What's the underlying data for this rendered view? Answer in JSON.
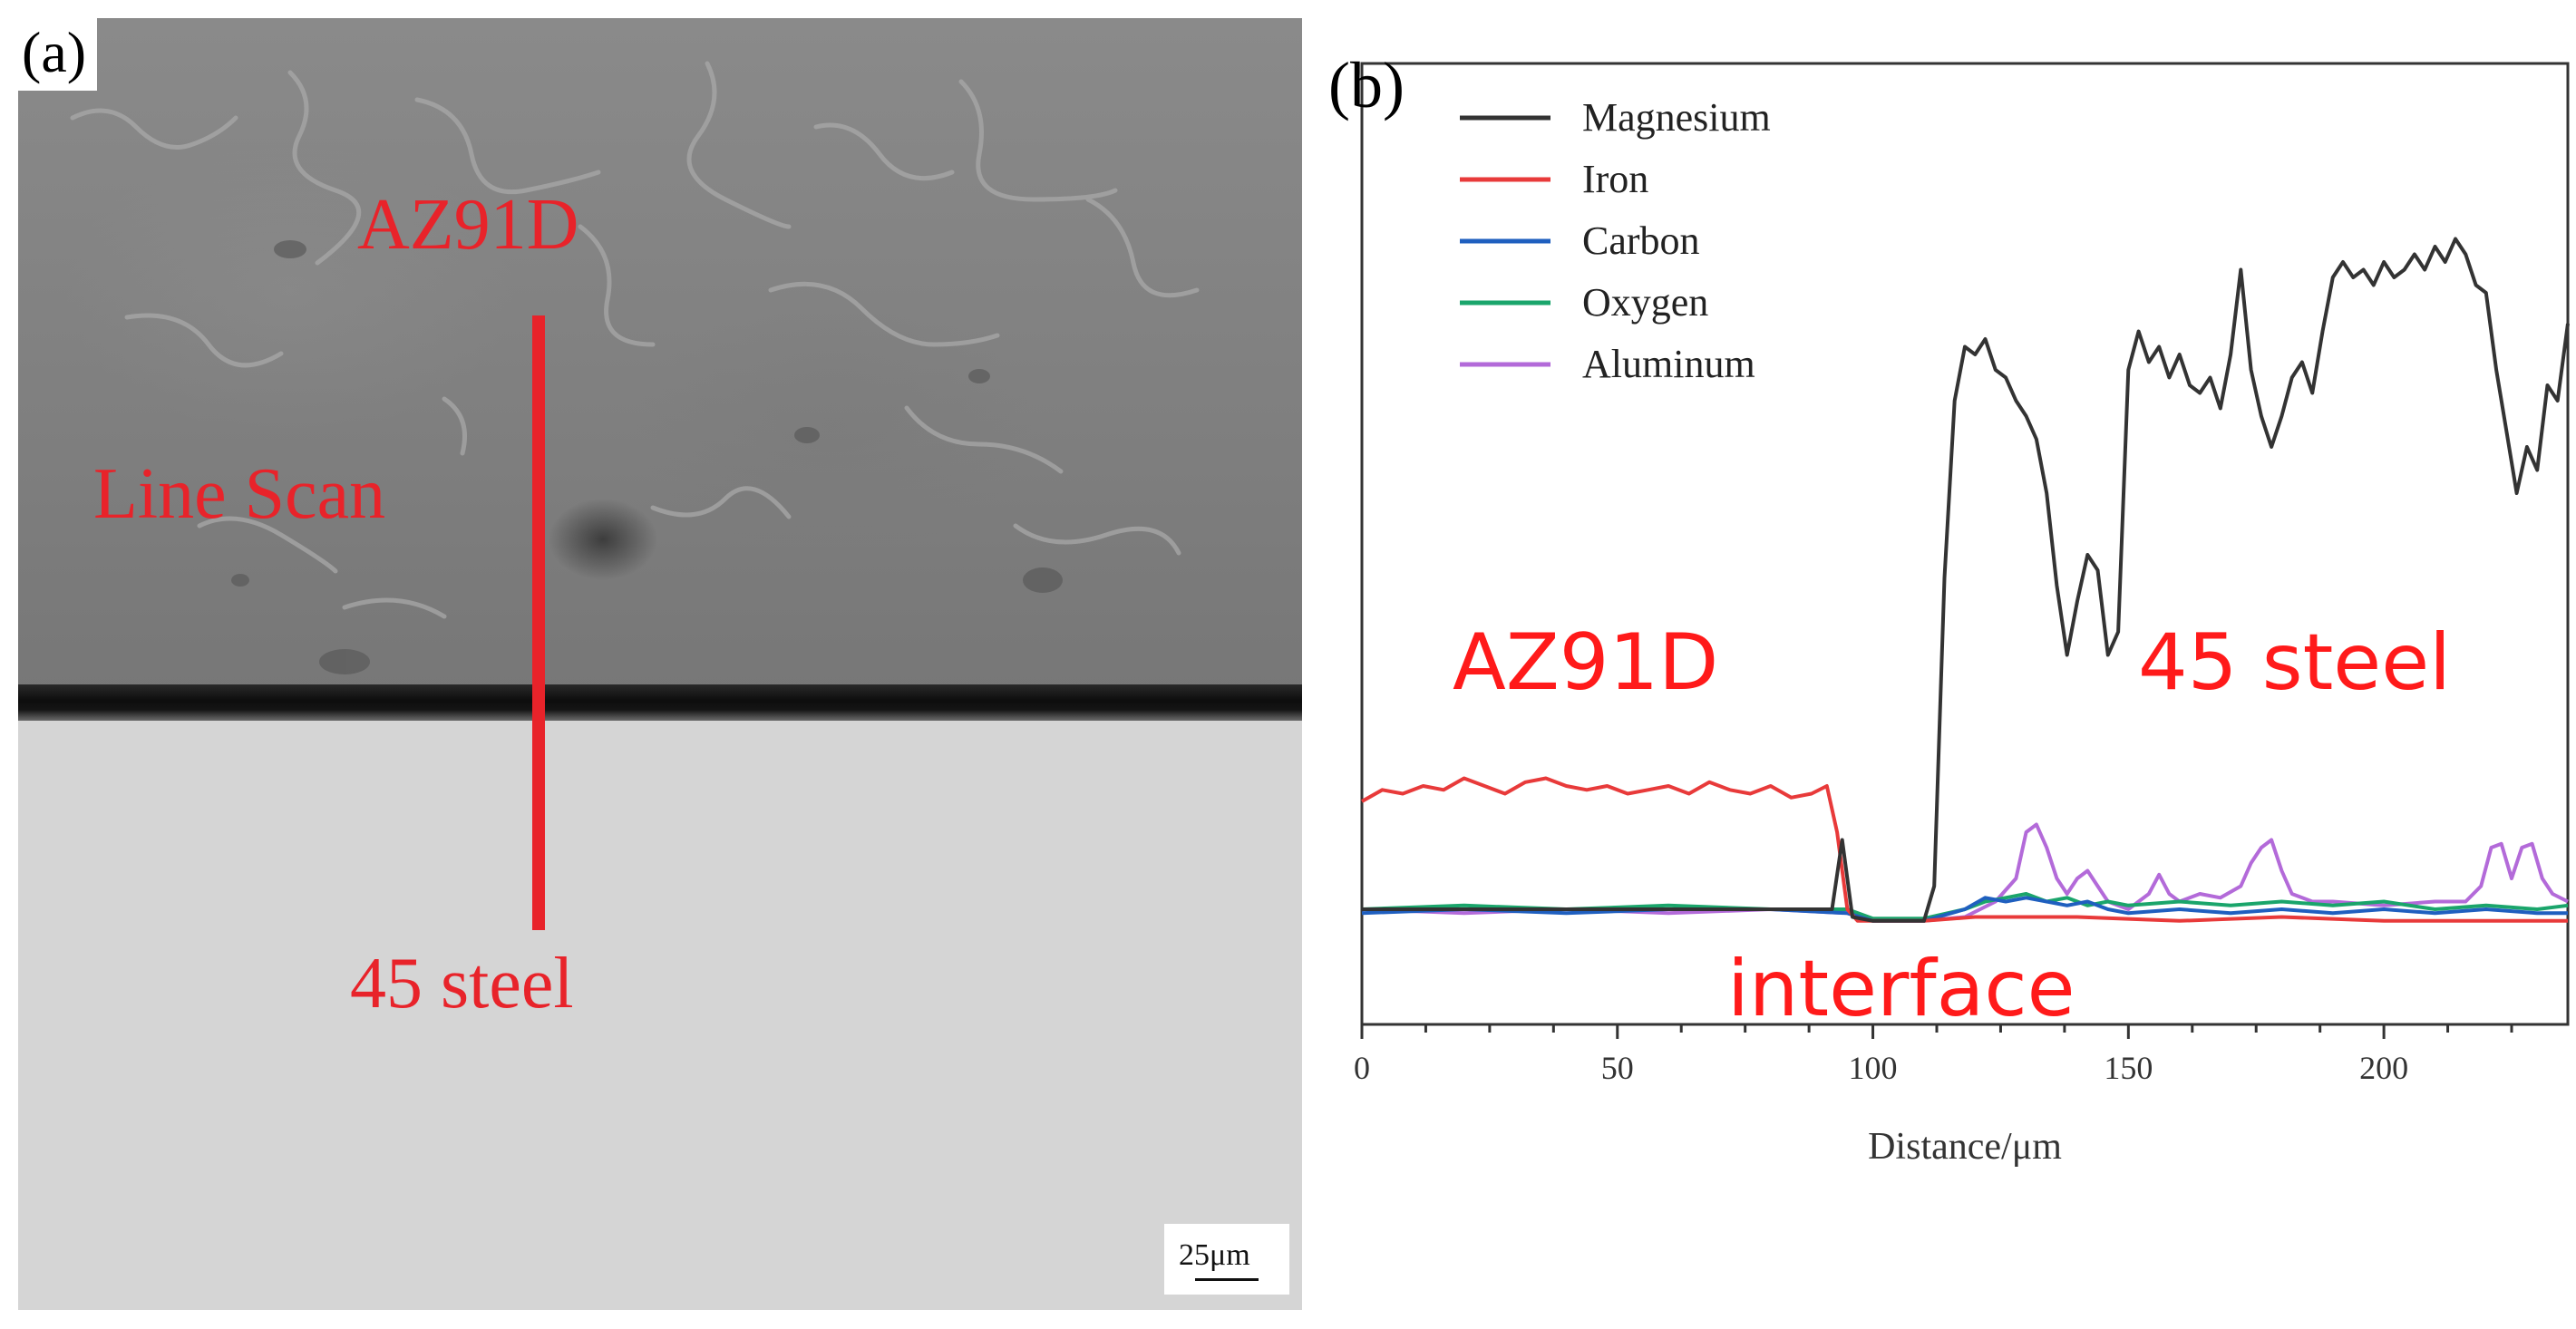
{
  "panel_a": {
    "letter": "(a)",
    "top_label": "AZ91D",
    "line_label": "Line Scan",
    "bottom_label": "45 steel",
    "scale_bar": "25μm",
    "line_color": "#e8232a"
  },
  "panel_b": {
    "letter": "(b)",
    "annotations": {
      "left_region": "AZ91D",
      "right_region": "45 steel",
      "interface": "interface"
    }
  },
  "chart_data": {
    "type": "line",
    "title": "",
    "xlabel": "Distance/μm",
    "ylabel": "",
    "xlim": [
      0,
      236
    ],
    "ylim": [
      0,
      1
    ],
    "xticks": [
      0,
      50,
      100,
      150,
      200
    ],
    "grid": false,
    "legend": "top-left",
    "series": [
      {
        "name": "Magnesium",
        "color": "#333333",
        "x": [
          0,
          20,
          40,
          60,
          80,
          92,
          94,
          96,
          100,
          105,
          110,
          112,
          114,
          116,
          118,
          120,
          122,
          124,
          126,
          128,
          130,
          132,
          134,
          136,
          138,
          140,
          142,
          144,
          146,
          148,
          150,
          152,
          154,
          156,
          158,
          160,
          162,
          164,
          166,
          168,
          170,
          172,
          174,
          176,
          178,
          180,
          182,
          184,
          186,
          188,
          190,
          192,
          194,
          196,
          198,
          200,
          202,
          204,
          206,
          208,
          210,
          212,
          214,
          216,
          218,
          220,
          222,
          224,
          226,
          228,
          230,
          232,
          234,
          236
        ],
        "values": [
          0.02,
          0.02,
          0.02,
          0.02,
          0.02,
          0.02,
          0.11,
          0.01,
          0.005,
          0.005,
          0.005,
          0.05,
          0.45,
          0.68,
          0.75,
          0.74,
          0.76,
          0.72,
          0.71,
          0.68,
          0.66,
          0.63,
          0.56,
          0.44,
          0.35,
          0.42,
          0.48,
          0.46,
          0.35,
          0.38,
          0.72,
          0.77,
          0.73,
          0.75,
          0.71,
          0.74,
          0.7,
          0.69,
          0.71,
          0.67,
          0.74,
          0.85,
          0.72,
          0.66,
          0.62,
          0.66,
          0.71,
          0.73,
          0.69,
          0.77,
          0.84,
          0.86,
          0.84,
          0.85,
          0.83,
          0.86,
          0.84,
          0.85,
          0.87,
          0.85,
          0.88,
          0.86,
          0.89,
          0.87,
          0.83,
          0.82,
          0.72,
          0.64,
          0.56,
          0.62,
          0.59,
          0.7,
          0.68,
          0.78
        ]
      },
      {
        "name": "Iron",
        "color": "#e83a3a",
        "x": [
          0,
          4,
          8,
          12,
          16,
          20,
          24,
          28,
          32,
          36,
          40,
          44,
          48,
          52,
          56,
          60,
          64,
          68,
          72,
          76,
          80,
          84,
          88,
          91,
          93,
          95,
          97,
          100,
          110,
          120,
          140,
          160,
          180,
          200,
          220,
          236
        ],
        "values": [
          0.16,
          0.175,
          0.17,
          0.18,
          0.175,
          0.19,
          0.18,
          0.17,
          0.185,
          0.19,
          0.18,
          0.175,
          0.18,
          0.17,
          0.175,
          0.18,
          0.17,
          0.185,
          0.175,
          0.17,
          0.18,
          0.165,
          0.17,
          0.18,
          0.12,
          0.02,
          0.005,
          0.005,
          0.005,
          0.01,
          0.01,
          0.005,
          0.01,
          0.005,
          0.005,
          0.005
        ]
      },
      {
        "name": "Carbon",
        "color": "#1f5fbf",
        "x": [
          0,
          20,
          40,
          60,
          80,
          95,
          100,
          110,
          118,
          122,
          126,
          130,
          134,
          138,
          142,
          146,
          150,
          160,
          170,
          180,
          190,
          200,
          210,
          220,
          230,
          236
        ],
        "values": [
          0.015,
          0.02,
          0.015,
          0.02,
          0.02,
          0.015,
          0.005,
          0.005,
          0.02,
          0.035,
          0.03,
          0.035,
          0.03,
          0.025,
          0.03,
          0.02,
          0.015,
          0.02,
          0.015,
          0.02,
          0.015,
          0.02,
          0.015,
          0.02,
          0.015,
          0.015
        ]
      },
      {
        "name": "Oxygen",
        "color": "#1aa56b",
        "x": [
          0,
          20,
          40,
          60,
          80,
          95,
          100,
          110,
          118,
          122,
          126,
          130,
          134,
          138,
          142,
          146,
          150,
          160,
          170,
          180,
          190,
          200,
          210,
          220,
          230,
          236
        ],
        "values": [
          0.02,
          0.025,
          0.02,
          0.025,
          0.02,
          0.02,
          0.008,
          0.008,
          0.02,
          0.03,
          0.035,
          0.04,
          0.03,
          0.035,
          0.025,
          0.03,
          0.025,
          0.03,
          0.025,
          0.03,
          0.025,
          0.03,
          0.02,
          0.025,
          0.02,
          0.025
        ]
      },
      {
        "name": "Aluminum",
        "color": "#b36ad9",
        "x": [
          0,
          20,
          40,
          60,
          80,
          95,
          100,
          110,
          118,
          124,
          128,
          130,
          132,
          134,
          136,
          138,
          140,
          142,
          144,
          146,
          150,
          154,
          156,
          158,
          160,
          164,
          168,
          172,
          174,
          176,
          178,
          180,
          182,
          186,
          190,
          200,
          210,
          216,
          219,
          221,
          223,
          225,
          227,
          229,
          231,
          233,
          236
        ],
        "values": [
          0.02,
          0.015,
          0.02,
          0.015,
          0.02,
          0.015,
          0.005,
          0.005,
          0.01,
          0.03,
          0.06,
          0.12,
          0.13,
          0.1,
          0.06,
          0.04,
          0.06,
          0.07,
          0.05,
          0.03,
          0.02,
          0.04,
          0.065,
          0.04,
          0.03,
          0.04,
          0.035,
          0.05,
          0.08,
          0.1,
          0.11,
          0.07,
          0.04,
          0.03,
          0.03,
          0.025,
          0.03,
          0.03,
          0.05,
          0.1,
          0.105,
          0.06,
          0.1,
          0.105,
          0.06,
          0.04,
          0.03
        ]
      }
    ]
  }
}
